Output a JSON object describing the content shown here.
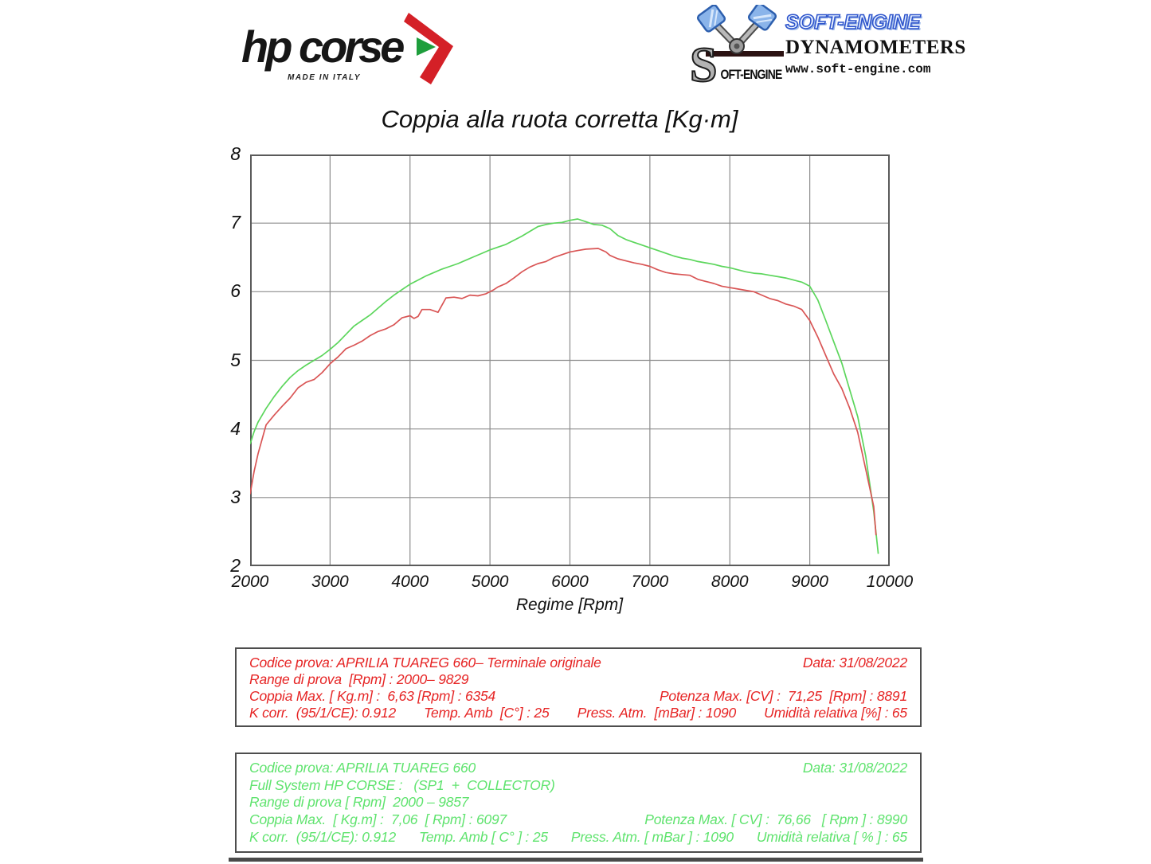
{
  "header": {
    "hpcorse": {
      "wordmark": "hp corse",
      "made_in": "MADE IN ITALY",
      "accent_red": "#d42027",
      "accent_green": "#1e9e3c"
    },
    "softengine": {
      "brand": "SOFT-ENGINE",
      "subtitle": "DYNAMOMETERS",
      "url": "www.soft-engine.com",
      "emblem_letter": "S",
      "emblem_text": "OFT-ENGINE",
      "brand_blue": "#2f55cc"
    }
  },
  "chart_data": {
    "type": "line",
    "title": "Coppia alla ruota corretta [Kg·m]",
    "xlabel": "Regime [Rpm]",
    "ylabel": "",
    "xlim": [
      2000,
      10000
    ],
    "ylim": [
      2,
      8
    ],
    "x_ticks": [
      2000,
      3000,
      4000,
      5000,
      6000,
      7000,
      8000,
      9000,
      10000
    ],
    "y_ticks": [
      2,
      3,
      4,
      5,
      6,
      7,
      8
    ],
    "grid": true,
    "legend_position": "none",
    "grid_color": "#8c8c8c",
    "border_color": "#5a5a5a",
    "series": [
      {
        "name": "Full System HP CORSE (SP1 + COLLECTOR)",
        "color": "#5cd65c",
        "max_torque_kgm": 7.06,
        "max_torque_rpm": 6097,
        "points": [
          [
            2000,
            3.78
          ],
          [
            2050,
            3.96
          ],
          [
            2100,
            4.1
          ],
          [
            2200,
            4.3
          ],
          [
            2300,
            4.47
          ],
          [
            2400,
            4.62
          ],
          [
            2500,
            4.75
          ],
          [
            2600,
            4.85
          ],
          [
            2700,
            4.93
          ],
          [
            2800,
            5.0
          ],
          [
            2900,
            5.07
          ],
          [
            3000,
            5.16
          ],
          [
            3100,
            5.26
          ],
          [
            3200,
            5.38
          ],
          [
            3300,
            5.5
          ],
          [
            3400,
            5.58
          ],
          [
            3500,
            5.66
          ],
          [
            3600,
            5.76
          ],
          [
            3700,
            5.86
          ],
          [
            3800,
            5.95
          ],
          [
            3900,
            6.03
          ],
          [
            4000,
            6.11
          ],
          [
            4100,
            6.17
          ],
          [
            4200,
            6.23
          ],
          [
            4300,
            6.28
          ],
          [
            4400,
            6.33
          ],
          [
            4500,
            6.37
          ],
          [
            4600,
            6.41
          ],
          [
            4700,
            6.46
          ],
          [
            4800,
            6.51
          ],
          [
            4900,
            6.56
          ],
          [
            5000,
            6.61
          ],
          [
            5100,
            6.65
          ],
          [
            5200,
            6.69
          ],
          [
            5300,
            6.75
          ],
          [
            5400,
            6.81
          ],
          [
            5500,
            6.88
          ],
          [
            5600,
            6.95
          ],
          [
            5700,
            6.98
          ],
          [
            5800,
            7.0
          ],
          [
            5900,
            7.01
          ],
          [
            6000,
            7.04
          ],
          [
            6097,
            7.06
          ],
          [
            6200,
            7.02
          ],
          [
            6300,
            6.98
          ],
          [
            6400,
            6.97
          ],
          [
            6500,
            6.92
          ],
          [
            6600,
            6.82
          ],
          [
            6700,
            6.76
          ],
          [
            6800,
            6.72
          ],
          [
            6900,
            6.68
          ],
          [
            7000,
            6.64
          ],
          [
            7100,
            6.6
          ],
          [
            7200,
            6.56
          ],
          [
            7300,
            6.52
          ],
          [
            7400,
            6.49
          ],
          [
            7500,
            6.47
          ],
          [
            7600,
            6.44
          ],
          [
            7700,
            6.42
          ],
          [
            7800,
            6.4
          ],
          [
            7900,
            6.37
          ],
          [
            8000,
            6.35
          ],
          [
            8100,
            6.32
          ],
          [
            8200,
            6.29
          ],
          [
            8300,
            6.27
          ],
          [
            8400,
            6.26
          ],
          [
            8500,
            6.24
          ],
          [
            8600,
            6.22
          ],
          [
            8700,
            6.2
          ],
          [
            8800,
            6.17
          ],
          [
            8900,
            6.14
          ],
          [
            9000,
            6.08
          ],
          [
            9100,
            5.88
          ],
          [
            9200,
            5.58
          ],
          [
            9300,
            5.27
          ],
          [
            9400,
            4.96
          ],
          [
            9500,
            4.57
          ],
          [
            9600,
            4.18
          ],
          [
            9700,
            3.6
          ],
          [
            9800,
            2.8
          ],
          [
            9857,
            2.18
          ]
        ]
      },
      {
        "name": "Terminale originale",
        "color": "#d95555",
        "max_torque_kgm": 6.63,
        "max_torque_rpm": 6354,
        "points": [
          [
            2000,
            3.05
          ],
          [
            2050,
            3.38
          ],
          [
            2100,
            3.64
          ],
          [
            2200,
            4.06
          ],
          [
            2300,
            4.2
          ],
          [
            2400,
            4.33
          ],
          [
            2500,
            4.45
          ],
          [
            2600,
            4.6
          ],
          [
            2700,
            4.68
          ],
          [
            2800,
            4.72
          ],
          [
            2900,
            4.82
          ],
          [
            3000,
            4.95
          ],
          [
            3100,
            5.05
          ],
          [
            3200,
            5.17
          ],
          [
            3300,
            5.22
          ],
          [
            3400,
            5.28
          ],
          [
            3500,
            5.36
          ],
          [
            3600,
            5.42
          ],
          [
            3700,
            5.46
          ],
          [
            3800,
            5.52
          ],
          [
            3900,
            5.62
          ],
          [
            4000,
            5.65
          ],
          [
            4050,
            5.61
          ],
          [
            4100,
            5.64
          ],
          [
            4150,
            5.74
          ],
          [
            4250,
            5.74
          ],
          [
            4350,
            5.7
          ],
          [
            4450,
            5.91
          ],
          [
            4550,
            5.92
          ],
          [
            4650,
            5.9
          ],
          [
            4750,
            5.95
          ],
          [
            4850,
            5.94
          ],
          [
            4950,
            5.97
          ],
          [
            5050,
            6.03
          ],
          [
            5100,
            6.07
          ],
          [
            5200,
            6.12
          ],
          [
            5300,
            6.2
          ],
          [
            5400,
            6.29
          ],
          [
            5500,
            6.36
          ],
          [
            5600,
            6.41
          ],
          [
            5700,
            6.44
          ],
          [
            5800,
            6.5
          ],
          [
            5900,
            6.54
          ],
          [
            6000,
            6.58
          ],
          [
            6100,
            6.6
          ],
          [
            6200,
            6.62
          ],
          [
            6354,
            6.63
          ],
          [
            6450,
            6.58
          ],
          [
            6500,
            6.53
          ],
          [
            6600,
            6.48
          ],
          [
            6700,
            6.45
          ],
          [
            6800,
            6.42
          ],
          [
            6900,
            6.4
          ],
          [
            7000,
            6.37
          ],
          [
            7100,
            6.32
          ],
          [
            7200,
            6.28
          ],
          [
            7300,
            6.26
          ],
          [
            7400,
            6.25
          ],
          [
            7500,
            6.24
          ],
          [
            7600,
            6.18
          ],
          [
            7700,
            6.15
          ],
          [
            7800,
            6.12
          ],
          [
            7900,
            6.08
          ],
          [
            8000,
            6.06
          ],
          [
            8100,
            6.04
          ],
          [
            8200,
            6.02
          ],
          [
            8300,
            6.0
          ],
          [
            8400,
            5.95
          ],
          [
            8500,
            5.9
          ],
          [
            8600,
            5.87
          ],
          [
            8700,
            5.82
          ],
          [
            8800,
            5.79
          ],
          [
            8900,
            5.74
          ],
          [
            9000,
            5.58
          ],
          [
            9100,
            5.34
          ],
          [
            9200,
            5.07
          ],
          [
            9300,
            4.8
          ],
          [
            9400,
            4.59
          ],
          [
            9500,
            4.3
          ],
          [
            9600,
            3.95
          ],
          [
            9700,
            3.41
          ],
          [
            9800,
            2.87
          ],
          [
            9829,
            2.45
          ]
        ]
      }
    ]
  },
  "info_boxes": [
    {
      "id": "original",
      "text_color": "#e62424",
      "rows": [
        [
          "Codice prova: APRILIA TUAREG 660– Terminale originale",
          "Data: 31/08/2022"
        ],
        [
          "Range di prova  [Rpm] : 2000– 9829"
        ],
        [
          "Coppia Max. [ Kg.m] :  6,63 [Rpm] : 6354",
          "Potenza Max. [CV] :  71,25  [Rpm] : 8891"
        ],
        [
          "K corr.  (95/1/CE): 0.912",
          "Temp. Amb  [C°] : 25",
          "Press. Atm.  [mBar] : 1090",
          "Umidità relativa [%] : 65"
        ]
      ]
    },
    {
      "id": "hpcorse",
      "text_color": "#5fe36e",
      "rows": [
        [
          "Codice prova: APRILIA TUAREG 660",
          "Data: 31/08/2022"
        ],
        [
          "Full System HP CORSE :   (SP1  +  COLLECTOR)"
        ],
        [
          "Range di prova [ Rpm]  2000 – 9857"
        ],
        [
          "Coppia Max.  [ Kg.m] :  7,06  [ Rpm] : 6097",
          "Potenza Max. [ CV] :  76,66   [ Rpm ] : 8990"
        ],
        [
          "K corr.  (95/1/CE): 0.912",
          "Temp. Amb [ C° ] : 25",
          "Press. Atm. [ mBar ] : 1090",
          "Umidità relativa [ % ] : 65"
        ]
      ]
    }
  ]
}
